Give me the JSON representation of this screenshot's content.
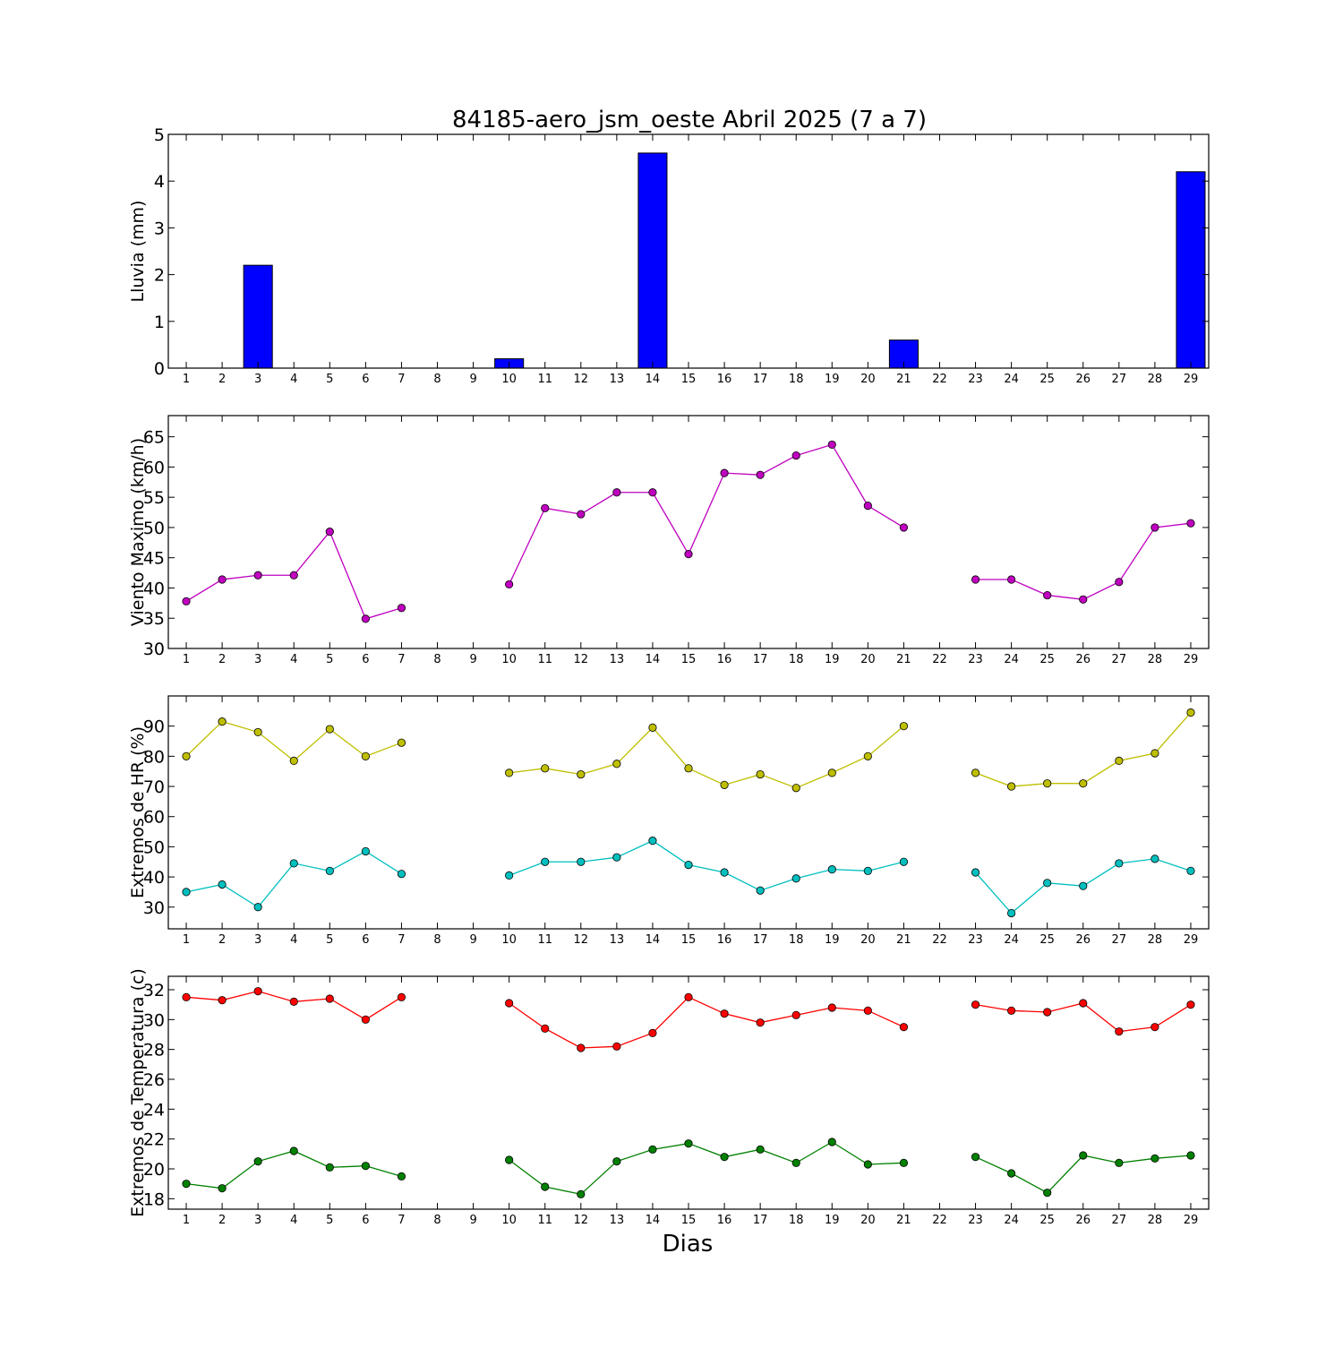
{
  "title": "84185-aero_jsm_oeste Abril 2025  (7 a 7)",
  "xlabel": "Dias",
  "chart_data": [
    {
      "type": "bar",
      "ylabel": "Lluvia (mm)",
      "ylim": [
        0,
        5
      ],
      "yticks": [
        0,
        1,
        2,
        3,
        4,
        5
      ],
      "xlim": [
        0.5,
        29.5
      ],
      "x": [
        1,
        2,
        3,
        4,
        5,
        6,
        7,
        8,
        9,
        10,
        11,
        12,
        13,
        14,
        15,
        16,
        17,
        18,
        19,
        20,
        21,
        22,
        23,
        24,
        25,
        26,
        27,
        28,
        29
      ],
      "series": [
        {
          "color": "#0000ff",
          "values": [
            0,
            0,
            2.2,
            0,
            0,
            0,
            0,
            0,
            0,
            0.2,
            0,
            0,
            0,
            4.6,
            0,
            0,
            0,
            0,
            0,
            0,
            0.6,
            0,
            0,
            0,
            0,
            0,
            0,
            0,
            4.2
          ]
        }
      ]
    },
    {
      "type": "line",
      "ylabel": "Viento Maximo (km/h)",
      "ylim": [
        30,
        68.5
      ],
      "yticks": [
        30,
        35,
        40,
        45,
        50,
        55,
        60,
        65
      ],
      "xlim": [
        0.5,
        29.5
      ],
      "x": [
        1,
        2,
        3,
        4,
        5,
        6,
        7,
        8,
        9,
        10,
        11,
        12,
        13,
        14,
        15,
        16,
        17,
        18,
        19,
        20,
        21,
        22,
        23,
        24,
        25,
        26,
        27,
        28,
        29
      ],
      "series": [
        {
          "color": "#bf00bf",
          "values": [
            37.8,
            41.4,
            42.1,
            42.1,
            49.3,
            34.9,
            36.7,
            null,
            null,
            40.6,
            53.2,
            52.2,
            55.8,
            55.8,
            45.6,
            59.0,
            58.7,
            61.9,
            63.7,
            53.6,
            50.0,
            null,
            41.4,
            41.4,
            38.8,
            38.1,
            41.0,
            50.0,
            50.7
          ]
        }
      ]
    },
    {
      "type": "line",
      "ylabel": "Extremos de HR (%)",
      "ylim": [
        22.8,
        100
      ],
      "yticks": [
        30,
        40,
        50,
        60,
        70,
        80,
        90
      ],
      "xlim": [
        0.5,
        29.5
      ],
      "x": [
        1,
        2,
        3,
        4,
        5,
        6,
        7,
        8,
        9,
        10,
        11,
        12,
        13,
        14,
        15,
        16,
        17,
        18,
        19,
        20,
        21,
        22,
        23,
        24,
        25,
        26,
        27,
        28,
        29
      ],
      "series": [
        {
          "color": "#bfbf00",
          "values": [
            80,
            91.5,
            88,
            78.5,
            89,
            80,
            84.5,
            null,
            null,
            74.5,
            76,
            74,
            77.5,
            89.5,
            76,
            70.5,
            74,
            69.5,
            74.5,
            80,
            90,
            null,
            74.5,
            70,
            71,
            71,
            78.5,
            81,
            94.5
          ]
        },
        {
          "color": "#00bfbf",
          "values": [
            35,
            37.5,
            30,
            44.5,
            42,
            48.5,
            41,
            null,
            null,
            40.5,
            45,
            45,
            46.5,
            52,
            44,
            41.5,
            35.5,
            39.5,
            42.5,
            42,
            45,
            null,
            41.5,
            28,
            38,
            37,
            44.5,
            46,
            42
          ]
        }
      ]
    },
    {
      "type": "line",
      "ylabel": "Extremos de Temperatura (c)",
      "ylim": [
        17.3,
        32.9
      ],
      "yticks": [
        18,
        20,
        22,
        24,
        26,
        28,
        30,
        32
      ],
      "xlim": [
        0.5,
        29.5
      ],
      "x": [
        1,
        2,
        3,
        4,
        5,
        6,
        7,
        8,
        9,
        10,
        11,
        12,
        13,
        14,
        15,
        16,
        17,
        18,
        19,
        20,
        21,
        22,
        23,
        24,
        25,
        26,
        27,
        28,
        29
      ],
      "series": [
        {
          "color": "#ff0000",
          "values": [
            31.5,
            31.3,
            31.9,
            31.2,
            31.4,
            30.0,
            31.5,
            null,
            null,
            31.1,
            29.4,
            28.1,
            28.2,
            29.1,
            31.5,
            30.4,
            29.8,
            30.3,
            30.8,
            30.6,
            29.5,
            null,
            31.0,
            30.6,
            30.5,
            31.1,
            29.2,
            29.5,
            31.0
          ]
        },
        {
          "color": "#008000",
          "values": [
            19.0,
            18.7,
            20.5,
            21.2,
            20.1,
            20.2,
            19.5,
            null,
            null,
            20.6,
            18.8,
            18.3,
            20.5,
            21.3,
            21.7,
            20.8,
            21.3,
            20.4,
            21.8,
            20.3,
            20.4,
            null,
            20.8,
            19.7,
            18.4,
            20.9,
            20.4,
            20.7,
            20.9
          ]
        }
      ]
    }
  ]
}
